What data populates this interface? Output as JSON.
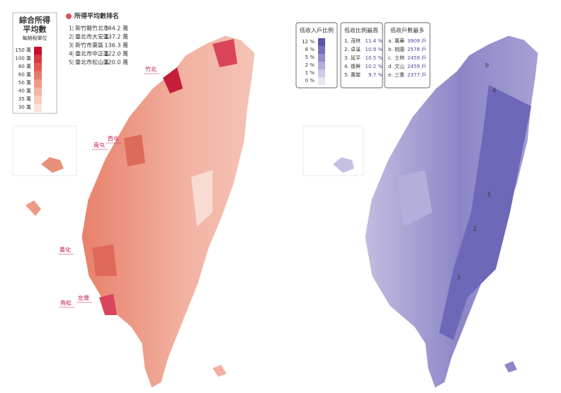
{
  "income_map": {
    "legend_title": [
      "綜合所得",
      "平均數"
    ],
    "legend_unit": "每納稅單位",
    "scale": [
      "150 萬",
      "100 萬",
      "80 萬",
      "60 萬",
      "50 萬",
      "40 萬",
      "35 萬",
      "30 萬"
    ],
    "ranking_title": "所得平均數排名",
    "ranking": [
      {
        "rank": "1",
        "name": "新竹縣竹北市",
        "value": "144.2 萬"
      },
      {
        "rank": "2",
        "name": "臺北市大安區",
        "value": "137.2 萬"
      },
      {
        "rank": "3",
        "name": "新竹市東區",
        "value": "136.3 萬"
      },
      {
        "rank": "4",
        "name": "臺北市中正區",
        "value": "122.0 萬"
      },
      {
        "rank": "5",
        "name": "臺北市松山區",
        "value": "120.0 萬"
      }
    ],
    "places": [
      "竹北",
      "西屯",
      "南屯",
      "善化",
      "左營",
      "鳥松"
    ]
  },
  "low_income_map": {
    "legend_title": "低收入戶比例",
    "scale": [
      "12 %",
      "8 %",
      "5 %",
      "2 %",
      "1 %",
      "0 %"
    ],
    "highest_ratio_title": "低收比例最高",
    "highest_ratio": [
      {
        "rank": "1.",
        "name": "茂林",
        "value": "11.4 %"
      },
      {
        "rank": "2.",
        "name": "卓溪",
        "value": "10.9 %"
      },
      {
        "rank": "3.",
        "name": "延平",
        "value": "10.5 %"
      },
      {
        "rank": "4.",
        "name": "復興",
        "value": "10.2 %"
      },
      {
        "rank": "5.",
        "name": "萬榮",
        "value": "9.7 %"
      }
    ],
    "most_households_title": "低收戶數最多",
    "most_households": [
      {
        "rank": "a.",
        "name": "萬華",
        "value": "3909 戶"
      },
      {
        "rank": "b.",
        "name": "桃園",
        "value": "2578 戶"
      },
      {
        "rank": "c.",
        "name": "士林",
        "value": "2459 戶"
      },
      {
        "rank": "d.",
        "name": "文山",
        "value": "2459 戶"
      },
      {
        "rank": "e.",
        "name": "三重",
        "value": "2377 戶"
      }
    ],
    "map_markers": [
      "4",
      "5",
      "2",
      "3",
      "b"
    ]
  }
}
